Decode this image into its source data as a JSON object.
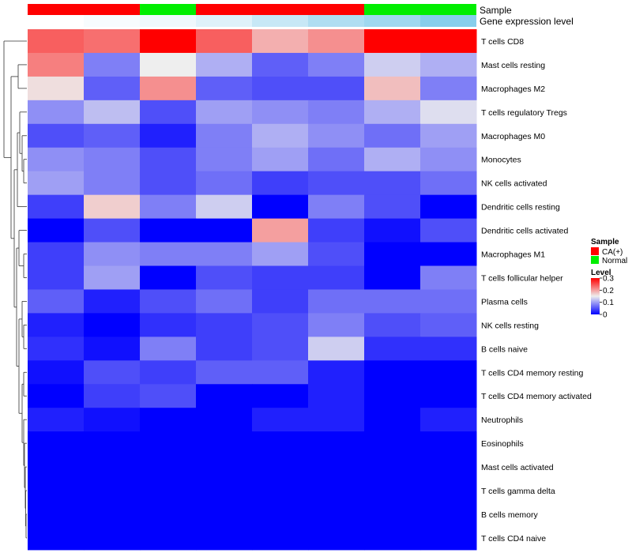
{
  "chart_data": {
    "type": "heatmap",
    "title": "",
    "annotation_labels": {
      "sample": "Sample",
      "gene_expression_level": "Gene expression level"
    },
    "columns": [
      {
        "sample": "CA(+)",
        "gene_expression_level": 0.0
      },
      {
        "sample": "CA(+)",
        "gene_expression_level": 0.02
      },
      {
        "sample": "Normal",
        "gene_expression_level": 0.04
      },
      {
        "sample": "CA(+)",
        "gene_expression_level": 0.08
      },
      {
        "sample": "CA(+)",
        "gene_expression_level": 0.14
      },
      {
        "sample": "CA(+)",
        "gene_expression_level": 0.2
      },
      {
        "sample": "Normal",
        "gene_expression_level": 0.24
      },
      {
        "sample": "Normal",
        "gene_expression_level": 0.3
      }
    ],
    "rows": [
      "T cells CD8",
      "Mast cells resting",
      "Macrophages M2",
      "T cells regulatory  Tregs",
      "Macrophages M0",
      "Monocytes",
      "NK cells activated",
      "Dendritic cells resting",
      "Dendritic cells activated",
      "Macrophages M1",
      "T cells follicular helper",
      "Plasma cells",
      "NK cells resting",
      "B cells naive",
      "T cells CD4 memory resting",
      "T cells CD4 memory activated",
      "Neutrophils",
      "Eosinophils",
      "Mast cells activated",
      "T cells gamma delta",
      "B cells memory",
      "T cells CD4 naive"
    ],
    "values": [
      [
        0.24,
        0.23,
        0.3,
        0.24,
        0.19,
        0.21,
        0.3,
        0.3
      ],
      [
        0.22,
        0.08,
        0.15,
        0.11,
        0.06,
        0.08,
        0.13,
        0.11
      ],
      [
        0.16,
        0.06,
        0.21,
        0.06,
        0.05,
        0.05,
        0.18,
        0.08
      ],
      [
        0.09,
        0.12,
        0.05,
        0.1,
        0.09,
        0.08,
        0.11,
        0.14
      ],
      [
        0.05,
        0.06,
        0.02,
        0.08,
        0.11,
        0.09,
        0.07,
        0.1
      ],
      [
        0.09,
        0.08,
        0.05,
        0.08,
        0.1,
        0.07,
        0.11,
        0.09
      ],
      [
        0.1,
        0.08,
        0.05,
        0.07,
        0.04,
        0.05,
        0.05,
        0.07
      ],
      [
        0.04,
        0.17,
        0.08,
        0.13,
        0.0,
        0.08,
        0.05,
        0.0
      ],
      [
        0.0,
        0.05,
        0.0,
        0.0,
        0.2,
        0.04,
        0.01,
        0.05
      ],
      [
        0.04,
        0.09,
        0.08,
        0.08,
        0.1,
        0.05,
        0.0,
        0.0
      ],
      [
        0.04,
        0.1,
        0.0,
        0.05,
        0.04,
        0.04,
        0.0,
        0.08
      ],
      [
        0.06,
        0.02,
        0.05,
        0.07,
        0.04,
        0.07,
        0.07,
        0.07
      ],
      [
        0.02,
        0.0,
        0.03,
        0.04,
        0.05,
        0.08,
        0.05,
        0.06
      ],
      [
        0.03,
        0.01,
        0.08,
        0.04,
        0.05,
        0.13,
        0.03,
        0.03
      ],
      [
        0.01,
        0.05,
        0.04,
        0.06,
        0.06,
        0.02,
        0.0,
        0.0
      ],
      [
        0.0,
        0.04,
        0.05,
        0.0,
        0.0,
        0.02,
        0.0,
        0.0
      ],
      [
        0.02,
        0.01,
        0.0,
        0.0,
        0.02,
        0.02,
        0.0,
        0.02
      ],
      [
        0.0,
        0.0,
        0.0,
        0.0,
        0.0,
        0.0,
        0.0,
        0.0
      ],
      [
        0.0,
        0.0,
        0.0,
        0.0,
        0.0,
        0.0,
        0.0,
        0.0
      ],
      [
        0.0,
        0.0,
        0.0,
        0.0,
        0.0,
        0.0,
        0.0,
        0.0
      ],
      [
        0.0,
        0.0,
        0.0,
        0.0,
        0.0,
        0.0,
        0.0,
        0.0
      ],
      [
        0.0,
        0.0,
        0.0,
        0.0,
        0.0,
        0.0,
        0.0,
        0.0
      ]
    ],
    "color_scale": {
      "low": "#0000ff",
      "mid": "#eeeeee",
      "high": "#ff0000",
      "mid_value": 0.15,
      "range": [
        0,
        0.3
      ]
    },
    "dendrogram": "rows clustered; columns not clustered",
    "legend": {
      "sample_title": "Sample",
      "sample_entries": [
        {
          "label": "CA(+)",
          "color": "#ff0000"
        },
        {
          "label": "Normal",
          "color": "#00ee00"
        }
      ],
      "level_title": "Level",
      "level_ticks": [
        "0.3",
        "0.2",
        "0.1",
        "0"
      ],
      "level_tick_values": [
        0.3,
        0.2,
        0.1,
        0
      ],
      "placement": "right"
    },
    "annotation_colors": {
      "CA(+)": "#ff0000",
      "Normal": "#00ee00",
      "expr_low": "#ffffff",
      "expr_high": "#87ceeb"
    }
  }
}
